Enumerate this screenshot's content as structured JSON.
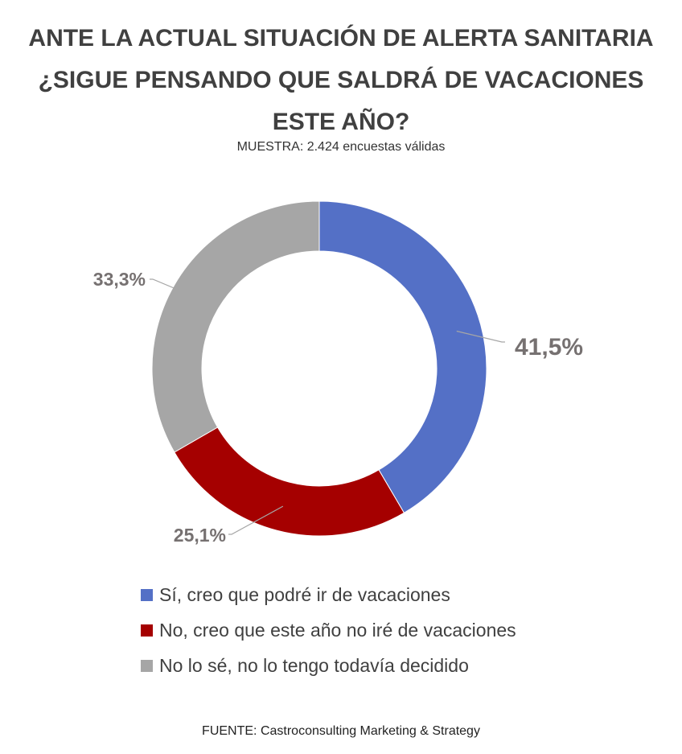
{
  "title_lines": [
    "ANTE LA ACTUAL SITUACIÓN DE ALERTA SANITARIA",
    "¿SIGUE PENSANDO QUE SALDRÁ DE VACACIONES",
    "ESTE AÑO?"
  ],
  "subtitle": "MUESTRA: 2.424 encuestas válidas",
  "source": "FUENTE: Castroconsulting Marketing & Strategy",
  "chart_data": {
    "type": "pie",
    "variant": "donut",
    "title": "ANTE LA ACTUAL SITUACIÓN DE ALERTA SANITARIA ¿SIGUE PENSANDO QUE SALDRÁ DE VACACIONES ESTE AÑO?",
    "legend_position": "bottom",
    "slices": [
      {
        "label": "Sí, creo que podré ir de vacaciones",
        "value": 41.5,
        "display": "41,5%",
        "color": "#5470C6"
      },
      {
        "label": "No, creo que este año no iré de vacaciones",
        "value": 25.1,
        "display": "25,1%",
        "color": "#A50000"
      },
      {
        "label": "No lo sé, no lo tengo todavía decidido",
        "value": 33.3,
        "display": "33,3%",
        "color": "#A6A6A6"
      }
    ]
  }
}
